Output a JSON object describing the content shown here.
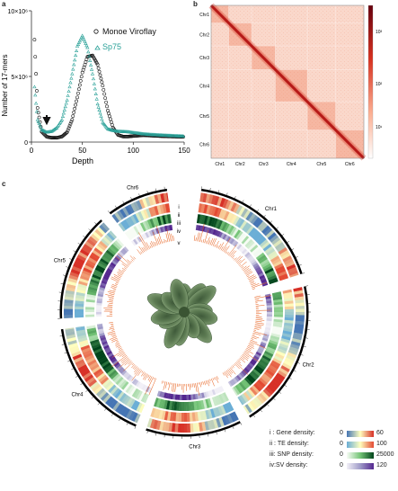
{
  "panels": {
    "a": "a",
    "b": "b",
    "c": "c"
  },
  "chart_data": [
    {
      "type": "line",
      "xlabel": "Depth",
      "ylabel": "Number of 17-mers",
      "xlim": [
        0,
        150
      ],
      "ylim": [
        0,
        10000000
      ],
      "x_ticks": [
        "0",
        "50",
        "100",
        "150"
      ],
      "y_ticks": [
        "0",
        "5×10⁶",
        "10×10⁶"
      ],
      "series": [
        {
          "name": "Monoe Viroflay",
          "color": "#111111",
          "x": [
            3,
            6,
            10,
            15,
            20,
            25,
            30,
            35,
            40,
            45,
            50,
            55,
            60,
            65,
            70,
            75,
            80,
            85,
            90,
            95,
            100,
            110,
            120,
            130,
            140,
            150
          ],
          "y": [
            7800000,
            2600000,
            800000,
            400000,
            330000,
            330000,
            420000,
            750000,
            1700000,
            3400000,
            5300000,
            6500000,
            6600000,
            5900000,
            4300000,
            2400000,
            1100000,
            550000,
            420000,
            420000,
            460000,
            520000,
            480000,
            440000,
            420000,
            400000
          ]
        },
        {
          "name": "Sp75",
          "color": "#2aa198",
          "x": [
            3,
            6,
            10,
            15,
            20,
            25,
            30,
            35,
            40,
            45,
            50,
            55,
            60,
            65,
            70,
            75,
            80,
            85,
            90,
            95,
            100,
            110,
            120,
            130,
            140,
            150
          ],
          "y": [
            4200000,
            1700000,
            950000,
            750000,
            820000,
            1100000,
            1700000,
            3200000,
            5200000,
            7300000,
            8100000,
            7200000,
            5200000,
            2900000,
            1500000,
            1000000,
            880000,
            820000,
            800000,
            780000,
            720000,
            620000,
            560000,
            520000,
            480000,
            450000
          ]
        }
      ],
      "annotations": [
        "arrow at low depth"
      ]
    },
    {
      "type": "heatmap",
      "title": "",
      "x_labels": [
        "Chr1",
        "Chr2",
        "Chr3",
        "Chr4",
        "Chr5",
        "Chr6"
      ],
      "y_labels": [
        "Chr1",
        "Chr2",
        "Chr3",
        "Chr4",
        "Chr5",
        "Chr6"
      ],
      "chromosome_bounds": [
        0,
        0.115,
        0.265,
        0.42,
        0.63,
        0.815,
        1.0
      ],
      "colorbar_ticks": [
        "10³",
        "10²",
        "10¹"
      ],
      "color": "#b2182b"
    },
    {
      "type": "circos",
      "chromosomes": [
        "Chr1",
        "Chr2",
        "Chr3",
        "Chr4",
        "Chr5",
        "Chr6"
      ],
      "track_labels": [
        "i",
        "ii",
        "iii",
        "iv",
        "v"
      ],
      "legend": [
        {
          "label": "i : Gene density:",
          "min": "0",
          "max": "60",
          "colors": [
            "#4575b4",
            "#ffffbf",
            "#d73027"
          ]
        },
        {
          "label": "ii : TE density:",
          "min": "0",
          "max": "100",
          "colors": [
            "#6baed6",
            "#ffffbf",
            "#e34a33"
          ]
        },
        {
          "label": "iii: SNP density:",
          "min": "0",
          "max": "25000",
          "colors": [
            "#f7fcf5",
            "#74c476",
            "#00441b"
          ]
        },
        {
          "label": "iv:SV density:",
          "min": "0",
          "max": "120",
          "colors": [
            "#f2f0f7",
            "#9e9ac8",
            "#54278f"
          ]
        }
      ]
    }
  ]
}
